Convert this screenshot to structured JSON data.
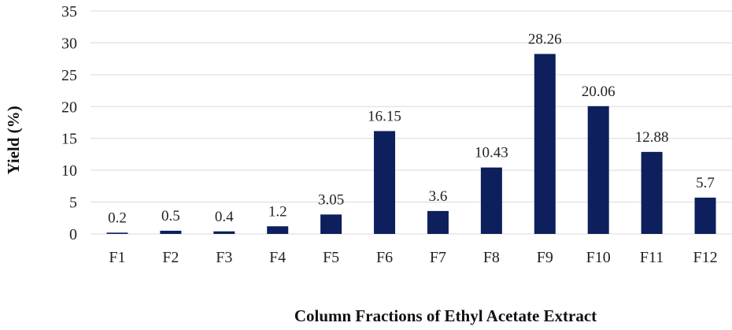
{
  "chart_data": {
    "type": "bar",
    "title": "",
    "xlabel": "Column Fractions of Ethyl Acetate Extract",
    "ylabel": "Yield (%)",
    "categories": [
      "F1",
      "F2",
      "F3",
      "F4",
      "F5",
      "F6",
      "F7",
      "F8",
      "F9",
      "F10",
      "F11",
      "F12"
    ],
    "values": [
      0.2,
      0.5,
      0.4,
      1.2,
      3.05,
      16.15,
      3.6,
      10.43,
      28.26,
      20.06,
      12.88,
      5.7
    ],
    "data_labels": [
      "0.2",
      "0.5",
      "0.4",
      "1.2",
      "3.05",
      "16.15",
      "3.6",
      "10.43",
      "28.26",
      "20.06",
      "12.88",
      "5.7"
    ],
    "yticks": [
      0,
      5,
      10,
      15,
      20,
      25,
      30,
      35
    ],
    "ylim": [
      0,
      35
    ],
    "grid": "horizontal",
    "bar_color": "#0d1f5c",
    "grid_color": "#d9d9d9"
  }
}
